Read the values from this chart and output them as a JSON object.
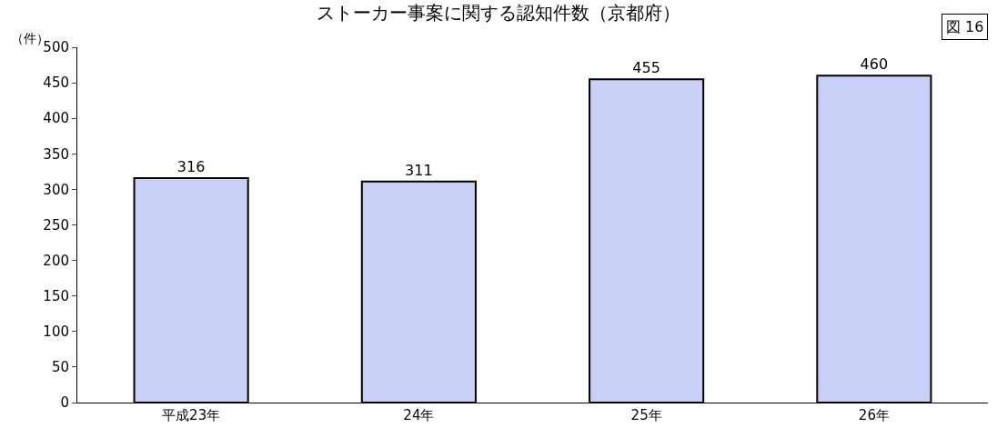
{
  "chart_data": {
    "type": "bar",
    "title": "ストーカー事案に関する認知件数（京都府）",
    "ylabel": "（件）",
    "annotations": [
      "図 16"
    ],
    "categories": [
      "平成23年",
      "24年",
      "25年",
      "26年"
    ],
    "values": [
      316,
      311,
      455,
      460
    ],
    "color": "#c8d0f8",
    "data_labels": true,
    "ylim": [
      0,
      500
    ],
    "yticks": [
      0,
      50,
      100,
      150,
      200,
      250,
      300,
      350,
      400,
      450,
      500
    ],
    "grid": false
  }
}
